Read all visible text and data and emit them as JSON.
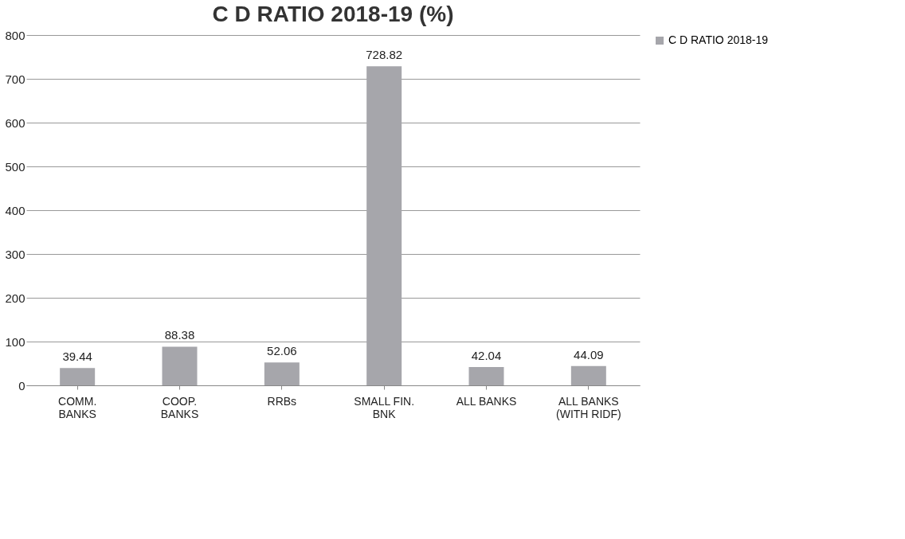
{
  "chart_data": {
    "type": "bar",
    "title": "C D RATIO 2018-19 (%)",
    "categories": [
      "COMM.\nBANKS",
      "COOP.\nBANKS",
      "RRBs",
      "SMALL FIN.\nBNK",
      "ALL BANKS",
      "ALL BANKS\n(WITH RIDF)"
    ],
    "series": [
      {
        "name": "C D RATIO 2018-19",
        "color": "#a6a6ab",
        "values": [
          39.44,
          88.38,
          52.06,
          728.82,
          42.04,
          44.09
        ]
      }
    ],
    "ylim": [
      0,
      800
    ],
    "yticks": [
      0,
      100,
      200,
      300,
      400,
      500,
      600,
      700,
      800
    ],
    "grid": "y",
    "legend": "right",
    "data_labels": true
  }
}
